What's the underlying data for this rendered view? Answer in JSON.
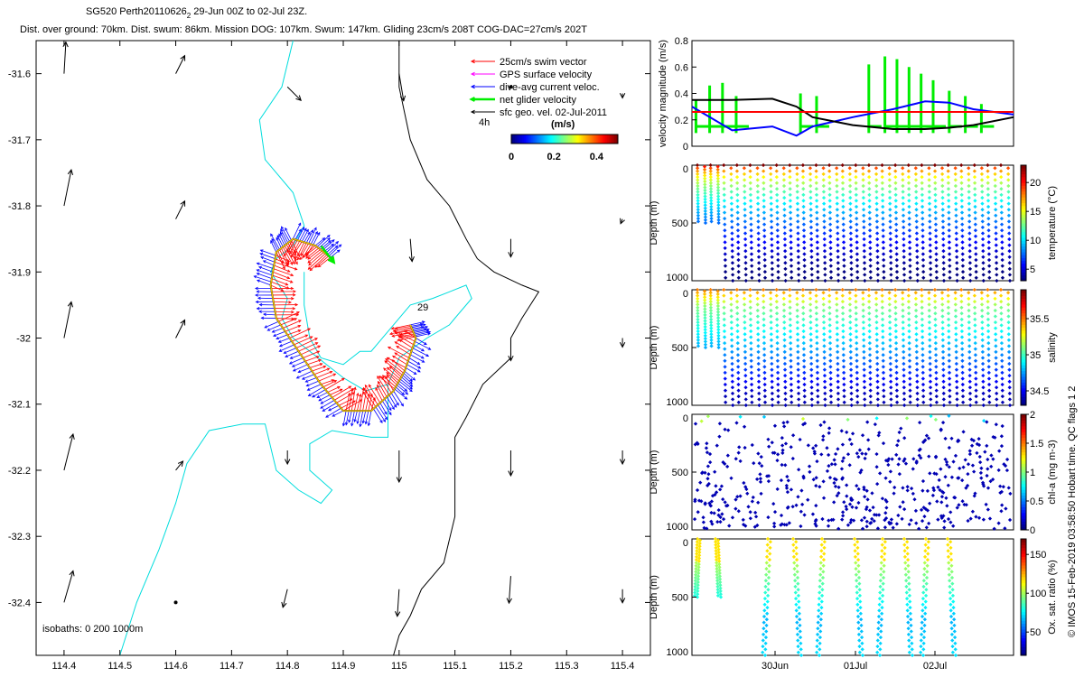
{
  "header": {
    "title_main": "SG520 Perth20110626",
    "title_sub": "2",
    "title_rest": " 29-Jun 00Z to 02-Jul 23Z.",
    "stats": "Dist. over ground: 70km. Dist. swum: 86km. Mission DOG: 107km. Swum: 147km. Gliding 23cm/s 208T COG-DAC=27cm/s 202T"
  },
  "side_label": "© IMOS 15-Feb-2019 03:58:50 Hobart time. QC flags 1  2",
  "colors": {
    "swim": "#ff0000",
    "gps": "#ff00ff",
    "dac": "#0000ff",
    "net": "#00ee00",
    "geo": "#000000",
    "isobath_200": "#00dddd",
    "isobath_1000": "#000000"
  },
  "chart_data": [
    {
      "type": "map",
      "xlim": [
        114.35,
        115.45
      ],
      "ylim": [
        -32.48,
        -31.55
      ],
      "xticks": [
        "114.4",
        "114.5",
        "114.6",
        "114.7",
        "114.8",
        "114.9",
        "115",
        "115.1",
        "115.2",
        "115.3",
        "115.4"
      ],
      "yticks": [
        "-31.6",
        "-31.7",
        "-31.8",
        "-31.9",
        "-32",
        "-32.1",
        "-32.2",
        "-32.3",
        "-32.4"
      ],
      "legend": [
        {
          "label": "25cm/s swim vector",
          "color": "#ff0000"
        },
        {
          "label": "GPS surface velocity",
          "color": "#ff00ff"
        },
        {
          "label": "dive-avg current veloc.",
          "color": "#0000ff"
        },
        {
          "label": "net glider velocity",
          "color": "#00ee00"
        },
        {
          "label": "sfc geo. vel. 02-Jul-2011",
          "color": "#000000"
        }
      ],
      "scale_label": "4h",
      "colorbar": {
        "title": "(m/s)",
        "ticks": [
          "0",
          "0.2",
          "0.4"
        ],
        "range": [
          0,
          0.5
        ]
      },
      "isobath_label": "isobaths: 0   200  1000m",
      "dive_label_end": "29",
      "geo_vectors": [
        {
          "lon": 114.4,
          "lat": -31.6,
          "u": 0.02,
          "v": 0.35
        },
        {
          "lon": 114.6,
          "lat": -31.6,
          "u": 0.1,
          "v": 0.2
        },
        {
          "lon": 114.8,
          "lat": -31.62,
          "u": 0.15,
          "v": -0.15
        },
        {
          "lon": 115.0,
          "lat": -31.6,
          "u": 0.05,
          "v": -0.3
        },
        {
          "lon": 115.2,
          "lat": -31.62,
          "u": 0.0,
          "v": 0.0
        },
        {
          "lon": 115.4,
          "lat": -31.63,
          "u": 0.0,
          "v": -0.05
        },
        {
          "lon": 114.4,
          "lat": -31.8,
          "u": 0.08,
          "v": 0.4
        },
        {
          "lon": 114.6,
          "lat": -31.82,
          "u": 0.1,
          "v": 0.2
        },
        {
          "lon": 115.02,
          "lat": -31.85,
          "u": 0.02,
          "v": -0.25
        },
        {
          "lon": 115.2,
          "lat": -31.85,
          "u": 0.0,
          "v": -0.2
        },
        {
          "lon": 115.4,
          "lat": -31.82,
          "u": -0.02,
          "v": -0.05
        },
        {
          "lon": 114.4,
          "lat": -32.0,
          "u": 0.08,
          "v": 0.4
        },
        {
          "lon": 114.6,
          "lat": -32.0,
          "u": 0.1,
          "v": 0.2
        },
        {
          "lon": 115.2,
          "lat": -32.0,
          "u": 0.0,
          "v": -0.25
        },
        {
          "lon": 115.4,
          "lat": -32.0,
          "u": 0.0,
          "v": -0.1
        },
        {
          "lon": 114.4,
          "lat": -32.2,
          "u": 0.1,
          "v": 0.4
        },
        {
          "lon": 114.6,
          "lat": -32.2,
          "u": 0.08,
          "v": 0.1
        },
        {
          "lon": 114.8,
          "lat": -32.17,
          "u": 0.0,
          "v": -0.15
        },
        {
          "lon": 115.0,
          "lat": -32.17,
          "u": 0.0,
          "v": -0.35
        },
        {
          "lon": 115.2,
          "lat": -32.17,
          "u": 0.0,
          "v": -0.28
        },
        {
          "lon": 115.4,
          "lat": -32.17,
          "u": 0.0,
          "v": -0.15
        },
        {
          "lon": 114.4,
          "lat": -32.4,
          "u": 0.1,
          "v": 0.35
        },
        {
          "lon": 114.6,
          "lat": -32.4,
          "u": 0.02,
          "v": 0.02
        },
        {
          "lon": 114.8,
          "lat": -32.38,
          "u": -0.05,
          "v": -0.2
        },
        {
          "lon": 115.0,
          "lat": -32.38,
          "u": -0.02,
          "v": -0.3
        },
        {
          "lon": 115.2,
          "lat": -32.36,
          "u": -0.02,
          "v": -0.3
        },
        {
          "lon": 115.4,
          "lat": -32.38,
          "u": 0.0,
          "v": -0.15
        }
      ],
      "track": [
        [
          115.02,
          -31.98
        ],
        [
          115.03,
          -32.0
        ],
        [
          115.01,
          -32.05
        ],
        [
          114.99,
          -32.08
        ],
        [
          114.95,
          -32.11
        ],
        [
          114.9,
          -32.11
        ],
        [
          114.86,
          -32.07
        ],
        [
          114.82,
          -32.02
        ],
        [
          114.78,
          -31.97
        ],
        [
          114.77,
          -31.92
        ],
        [
          114.78,
          -31.87
        ],
        [
          114.81,
          -31.85
        ],
        [
          114.85,
          -31.86
        ],
        [
          114.88,
          -31.88
        ]
      ]
    },
    {
      "type": "line",
      "ylabel": "velocity magnitude (m/s)",
      "ylim": [
        0,
        0.8
      ],
      "yticks": [
        "0",
        "0.2",
        "0.4",
        "0.6",
        "0.8"
      ],
      "series": [
        {
          "color": "#0000ff",
          "x": [
            0,
            0.5,
            1,
            1.3,
            1.5,
            2,
            2.5,
            2.9,
            3.2,
            3.5,
            4
          ],
          "y": [
            0.3,
            0.12,
            0.15,
            0.08,
            0.15,
            0.22,
            0.28,
            0.34,
            0.33,
            0.28,
            0.24
          ]
        },
        {
          "color": "#000000",
          "x": [
            0,
            0.5,
            1,
            1.3,
            1.5,
            2,
            2.5,
            2.9,
            3.2,
            3.5,
            4
          ],
          "y": [
            0.35,
            0.35,
            0.36,
            0.3,
            0.22,
            0.16,
            0.13,
            0.13,
            0.14,
            0.16,
            0.22
          ]
        },
        {
          "color": "#ff0000",
          "x": [
            0,
            4
          ],
          "y": [
            0.26,
            0.26
          ]
        }
      ],
      "net_spikes_x": [
        0.05,
        0.22,
        0.38,
        0.55,
        1.35,
        1.55,
        2.2,
        2.4,
        2.55,
        2.7,
        2.85,
        3.0,
        3.2,
        3.4,
        3.6
      ],
      "net_spikes_y": [
        0.35,
        0.46,
        0.48,
        0.38,
        0.4,
        0.38,
        0.62,
        0.68,
        0.66,
        0.6,
        0.55,
        0.5,
        0.42,
        0.38,
        0.32
      ]
    },
    {
      "type": "scatter",
      "variable": "temperature",
      "ylabel": "Depth (m)",
      "yticks": [
        "0",
        "500",
        "1000"
      ],
      "ylim": [
        0,
        1000
      ],
      "colorbar_label": "temperature (°C)",
      "colorbar_ticks": [
        "5",
        "10",
        "15",
        "20"
      ],
      "range": [
        3,
        23
      ],
      "dives_start": 0,
      "n_dives": 24,
      "max_depth": 1000
    },
    {
      "type": "scatter",
      "variable": "salinity",
      "ylabel": "Depth (m)",
      "yticks": [
        "0",
        "500",
        "1000"
      ],
      "ylim": [
        0,
        1000
      ],
      "colorbar_label": "salinity",
      "colorbar_ticks": [
        "34.5",
        "35",
        "35.5"
      ],
      "range": [
        34.3,
        35.9
      ],
      "dives_start": 0,
      "n_dives": 24,
      "max_depth": 1000
    },
    {
      "type": "scatter",
      "variable": "chl-a",
      "ylabel": "Depth (m)",
      "yticks": [
        "0",
        "500",
        "1000"
      ],
      "ylim": [
        0,
        1000
      ],
      "colorbar_label": "chl-a (mg m-3)",
      "colorbar_ticks": [
        "0",
        "0.5",
        "1",
        "1.5",
        "2"
      ],
      "range": [
        0,
        2
      ],
      "n_dives": 24,
      "max_depth": 1000
    },
    {
      "type": "scatter",
      "variable": "oxygen",
      "ylabel": "Depth (m)",
      "yticks": [
        "0",
        "500",
        "1000"
      ],
      "ylim": [
        0,
        1000
      ],
      "colorbar_label": "Ox. sat. ratio (%)",
      "colorbar_ticks": [
        "50",
        "100",
        "150"
      ],
      "range": [
        20,
        170
      ],
      "n_dives": 15,
      "max_depth": 1000,
      "xticks": [
        "30Jun",
        "01Jul",
        "02Jul"
      ]
    }
  ]
}
